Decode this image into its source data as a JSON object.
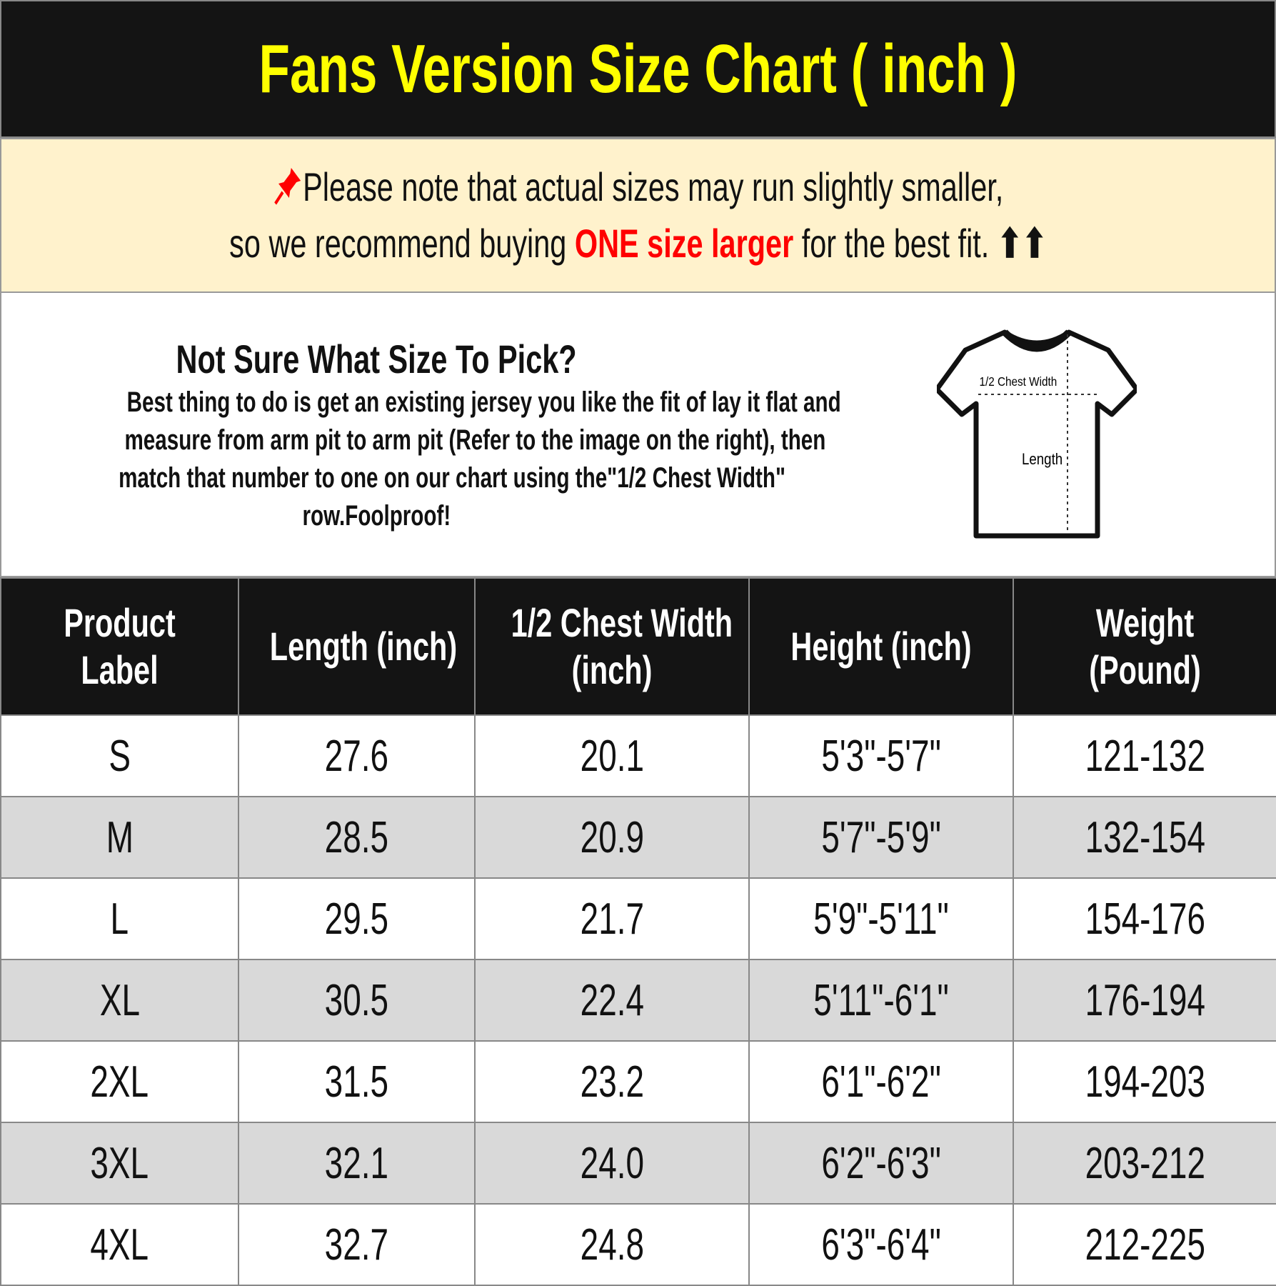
{
  "header": {
    "title": "Fans Version Size Chart ( inch )",
    "title_color": "#ffff00"
  },
  "note": {
    "icon": "pushpin-icon",
    "line1": "Please note that actual sizes may run slightly smaller,",
    "line2_pre": "so we recommend buying ",
    "line2_highlight": "ONE size larger",
    "line2_post": " for the best fit.",
    "arrows": "⬆⬆",
    "highlight_color": "#ff0000"
  },
  "info": {
    "heading": "Not Sure What Size To Pick?",
    "lines": [
      "Best thing to do is get an existing jersey you like the fit of lay it flat and",
      "measure from arm pit to arm pit (Refer to the image on the right), then",
      "match that number to one on our chart using the\"1/2 Chest Width\"",
      "row.Foolproof!"
    ],
    "diagram": {
      "chest_label": "1/2 Chest Width",
      "length_label": "Length"
    }
  },
  "table": {
    "headers": [
      [
        "Product",
        "Label"
      ],
      [
        "Length (inch)"
      ],
      [
        "1/2 Chest Width",
        "(inch)"
      ],
      [
        "Height (inch)"
      ],
      [
        "Weight",
        "(Pound)"
      ]
    ],
    "rows": [
      [
        "S",
        "27.6",
        "20.1",
        "5'3\"-5'7\"",
        "121-132"
      ],
      [
        "M",
        "28.5",
        "20.9",
        "5'7\"-5'9\"",
        "132-154"
      ],
      [
        "L",
        "29.5",
        "21.7",
        "5'9\"-5'11\"",
        "154-176"
      ],
      [
        "XL",
        "30.5",
        "22.4",
        "5'11\"-6'1\"",
        "176-194"
      ],
      [
        "2XL",
        "31.5",
        "23.2",
        "6'1\"-6'2\"",
        "194-203"
      ],
      [
        "3XL",
        "32.1",
        "24.0",
        "6'2\"-6'3\"",
        "203-212"
      ],
      [
        "4XL",
        "32.7",
        "24.8",
        "6'3\"-6'4\"",
        "212-225"
      ]
    ]
  }
}
